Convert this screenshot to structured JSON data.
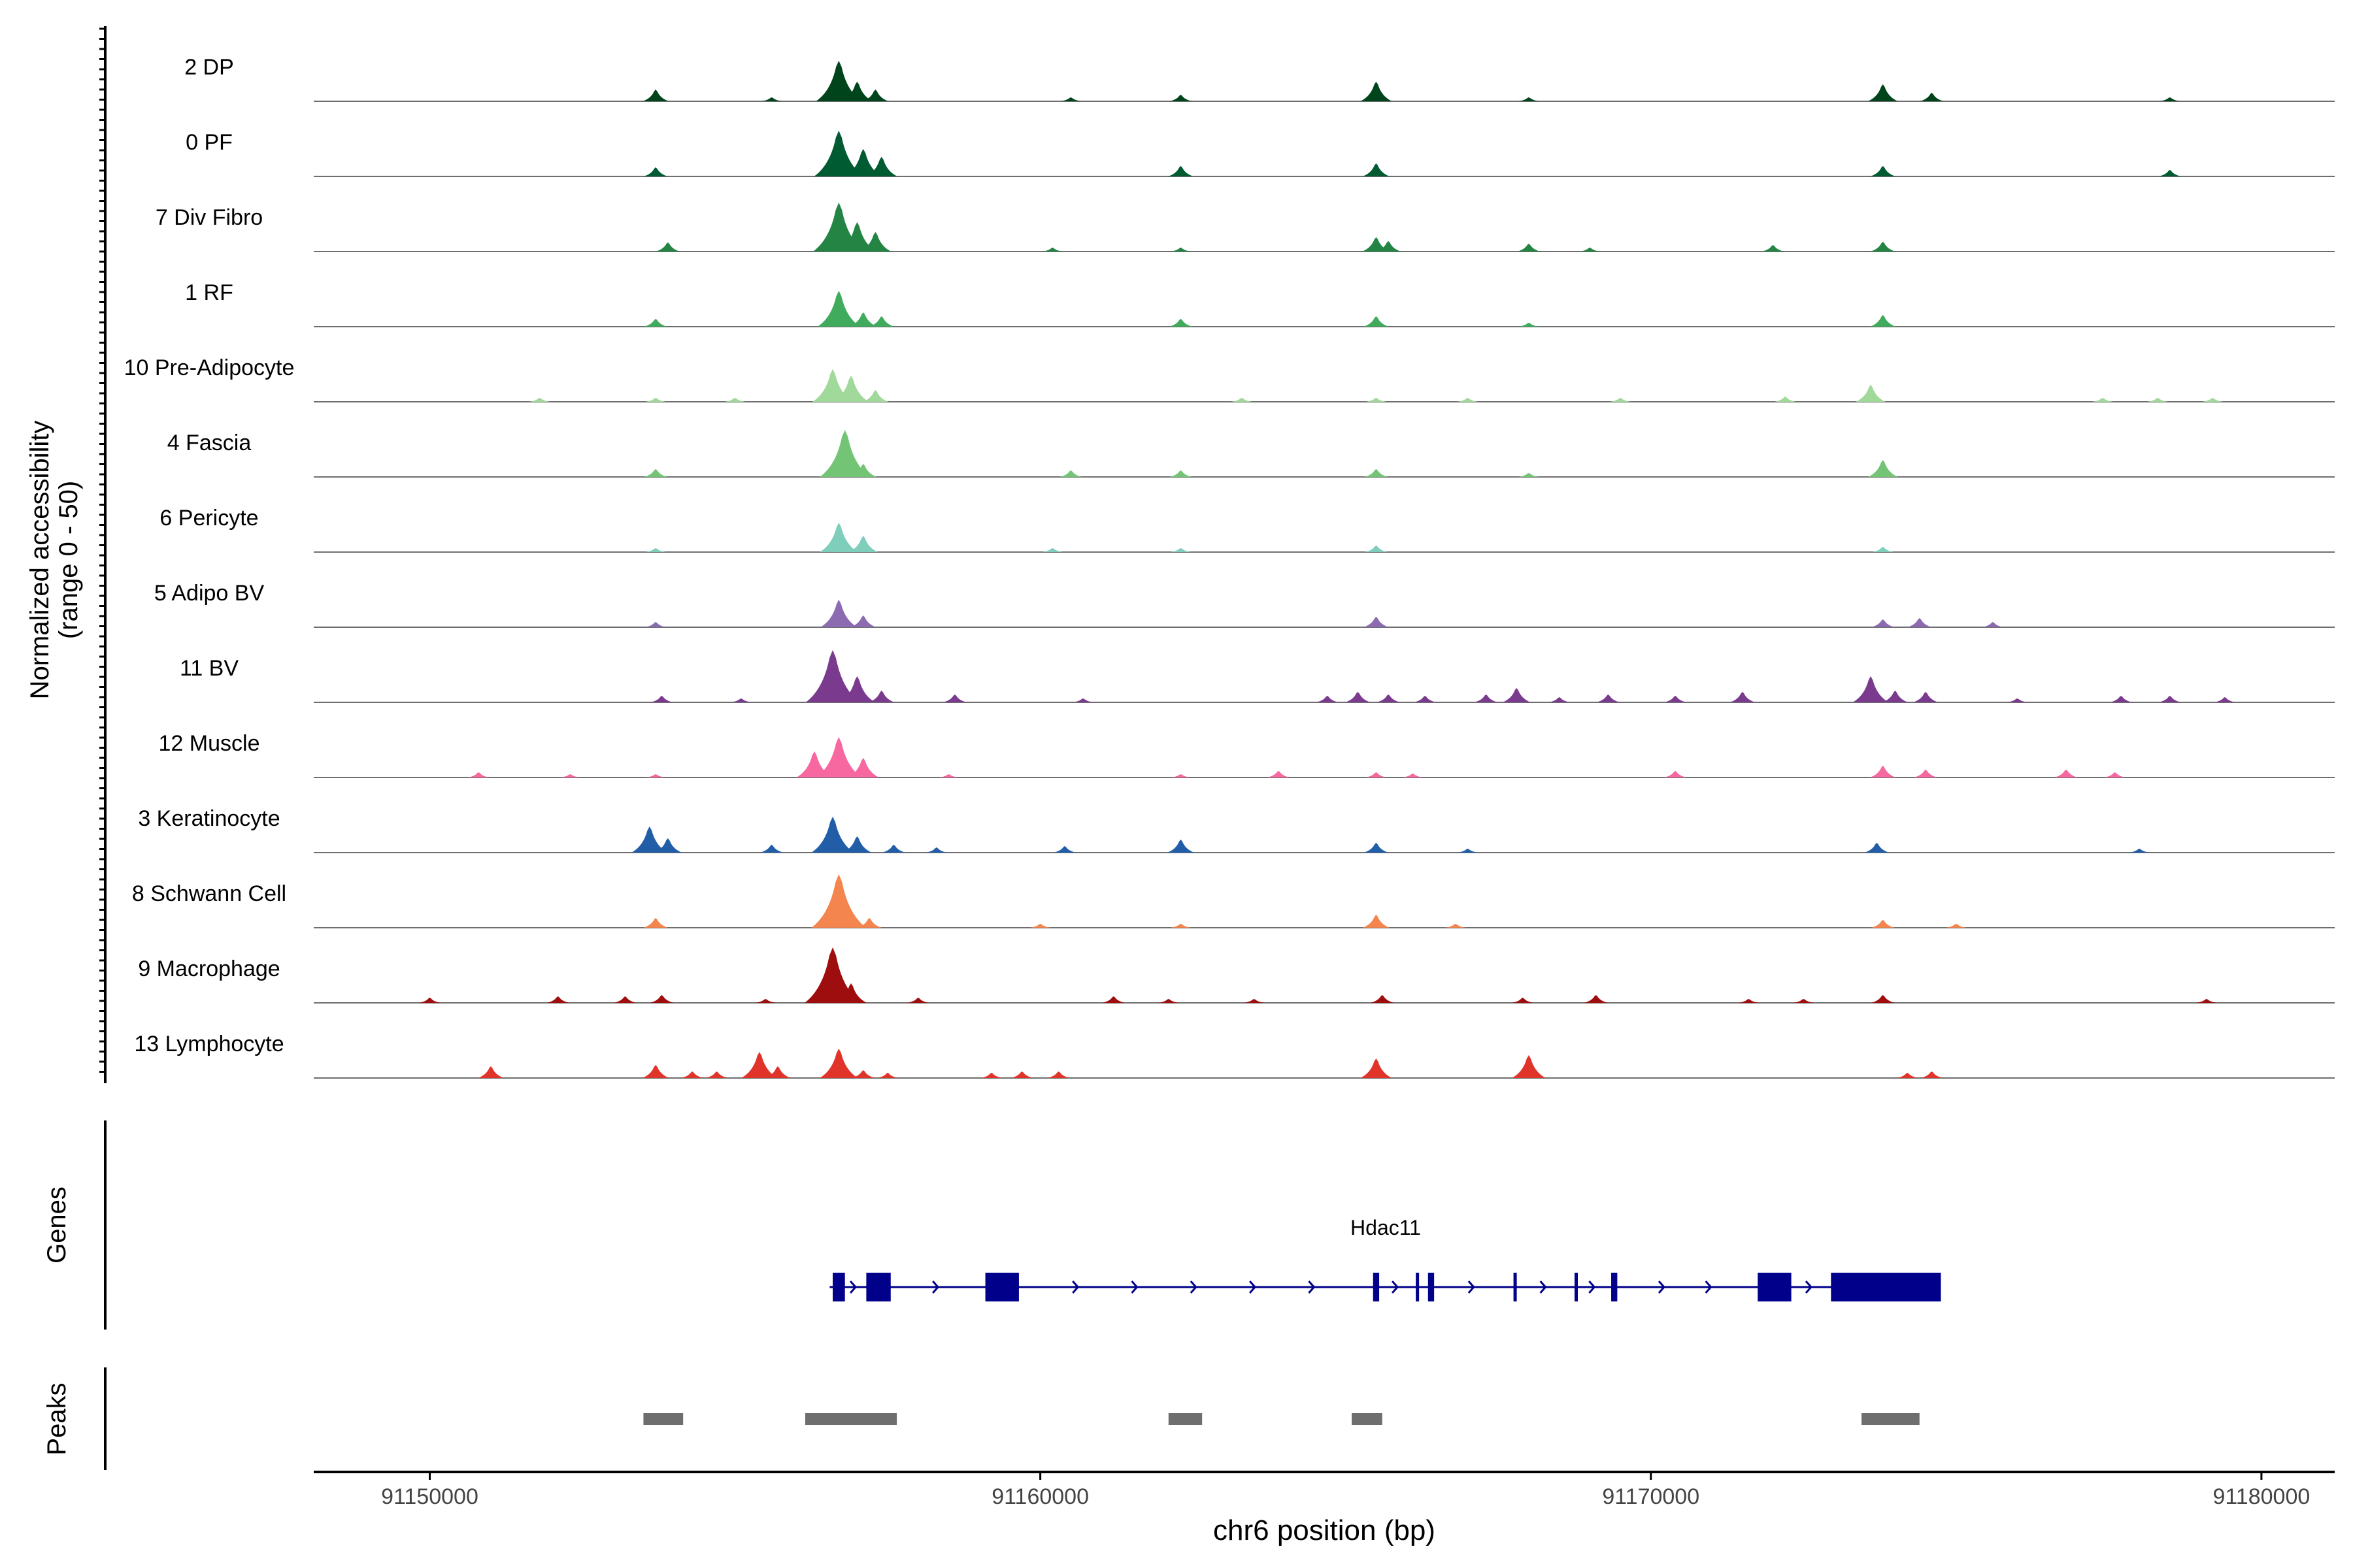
{
  "chart_data": {
    "type": "area",
    "title": "",
    "xlabel": "chr6 position (bp)",
    "ylabel": "Normalized accessibility",
    "ylabel_sub": "(range 0 - 50)",
    "xlim": [
      91148100,
      91181200
    ],
    "ylim": [
      0,
      50
    ],
    "x_ticks": [
      91150000,
      91160000,
      91170000,
      91180000
    ],
    "x_tick_labels": [
      "91150000",
      "91160000",
      "91170000",
      "91180000"
    ],
    "tracks": [
      {
        "name": "2 DP",
        "color": "#00441b",
        "peaks": [
          [
            91153700,
            0.18
          ],
          [
            91155600,
            0.06
          ],
          [
            91156700,
            0.62
          ],
          [
            91157000,
            0.3
          ],
          [
            91157300,
            0.18
          ],
          [
            91160500,
            0.06
          ],
          [
            91162300,
            0.1
          ],
          [
            91165500,
            0.3
          ],
          [
            91168000,
            0.06
          ],
          [
            91173800,
            0.26
          ],
          [
            91174600,
            0.13
          ],
          [
            91178500,
            0.06
          ]
        ]
      },
      {
        "name": "0 PF",
        "color": "#005a32",
        "peaks": [
          [
            91153700,
            0.14
          ],
          [
            91156700,
            0.7
          ],
          [
            91157100,
            0.42
          ],
          [
            91157400,
            0.3
          ],
          [
            91162300,
            0.16
          ],
          [
            91165500,
            0.2
          ],
          [
            91173800,
            0.16
          ],
          [
            91178500,
            0.1
          ]
        ]
      },
      {
        "name": "7 Div Fibro",
        "color": "#238443",
        "peaks": [
          [
            91153900,
            0.14
          ],
          [
            91156700,
            0.75
          ],
          [
            91157000,
            0.45
          ],
          [
            91157300,
            0.3
          ],
          [
            91160200,
            0.06
          ],
          [
            91162300,
            0.06
          ],
          [
            91165500,
            0.22
          ],
          [
            91165700,
            0.16
          ],
          [
            91168000,
            0.12
          ],
          [
            91169000,
            0.06
          ],
          [
            91172000,
            0.1
          ],
          [
            91173800,
            0.15
          ]
        ]
      },
      {
        "name": "1 RF",
        "color": "#41ab5d",
        "peaks": [
          [
            91153700,
            0.12
          ],
          [
            91156700,
            0.55
          ],
          [
            91157100,
            0.22
          ],
          [
            91157400,
            0.16
          ],
          [
            91162300,
            0.12
          ],
          [
            91165500,
            0.16
          ],
          [
            91168000,
            0.06
          ],
          [
            91173800,
            0.18
          ]
        ]
      },
      {
        "name": "10 Pre-Adipocyte",
        "color": "#a1d99b",
        "peaks": [
          [
            91151800,
            0.06
          ],
          [
            91153700,
            0.06
          ],
          [
            91155000,
            0.06
          ],
          [
            91156600,
            0.5
          ],
          [
            91156900,
            0.4
          ],
          [
            91157300,
            0.18
          ],
          [
            91163300,
            0.06
          ],
          [
            91165500,
            0.06
          ],
          [
            91167000,
            0.06
          ],
          [
            91169500,
            0.06
          ],
          [
            91172200,
            0.08
          ],
          [
            91173600,
            0.26
          ],
          [
            91177400,
            0.06
          ],
          [
            91178300,
            0.06
          ],
          [
            91179200,
            0.06
          ]
        ]
      },
      {
        "name": "4 Fascia",
        "color": "#74c476",
        "peaks": [
          [
            91153700,
            0.12
          ],
          [
            91156800,
            0.72
          ],
          [
            91157100,
            0.2
          ],
          [
            91160500,
            0.1
          ],
          [
            91162300,
            0.1
          ],
          [
            91165500,
            0.12
          ],
          [
            91168000,
            0.06
          ],
          [
            91173800,
            0.26
          ]
        ]
      },
      {
        "name": "6 Pericyte",
        "color": "#7fcdbb",
        "peaks": [
          [
            91153700,
            0.06
          ],
          [
            91156700,
            0.45
          ],
          [
            91157100,
            0.25
          ],
          [
            91160200,
            0.06
          ],
          [
            91162300,
            0.06
          ],
          [
            91165500,
            0.1
          ],
          [
            91173800,
            0.08
          ]
        ]
      },
      {
        "name": "5 Adipo BV",
        "color": "#8c6bb1",
        "peaks": [
          [
            91153700,
            0.08
          ],
          [
            91156700,
            0.42
          ],
          [
            91157100,
            0.18
          ],
          [
            91165500,
            0.16
          ],
          [
            91173800,
            0.12
          ],
          [
            91174400,
            0.14
          ],
          [
            91175600,
            0.08
          ]
        ]
      },
      {
        "name": "11 BV",
        "color": "#7a3b8f",
        "peaks": [
          [
            91153800,
            0.1
          ],
          [
            91155100,
            0.06
          ],
          [
            91156600,
            0.8
          ],
          [
            91157000,
            0.4
          ],
          [
            91157400,
            0.18
          ],
          [
            91158600,
            0.12
          ],
          [
            91160700,
            0.06
          ],
          [
            91164700,
            0.1
          ],
          [
            91165200,
            0.16
          ],
          [
            91165700,
            0.12
          ],
          [
            91166300,
            0.1
          ],
          [
            91167300,
            0.12
          ],
          [
            91167800,
            0.22
          ],
          [
            91168500,
            0.08
          ],
          [
            91169300,
            0.12
          ],
          [
            91170400,
            0.1
          ],
          [
            91171500,
            0.16
          ],
          [
            91173600,
            0.4
          ],
          [
            91174000,
            0.18
          ],
          [
            91174500,
            0.16
          ],
          [
            91176000,
            0.06
          ],
          [
            91177700,
            0.1
          ],
          [
            91178500,
            0.1
          ],
          [
            91179400,
            0.08
          ]
        ]
      },
      {
        "name": "12 Muscle",
        "color": "#f768a1",
        "peaks": [
          [
            91150800,
            0.08
          ],
          [
            91152300,
            0.05
          ],
          [
            91153700,
            0.05
          ],
          [
            91156300,
            0.4
          ],
          [
            91156700,
            0.62
          ],
          [
            91157100,
            0.3
          ],
          [
            91158500,
            0.05
          ],
          [
            91162300,
            0.05
          ],
          [
            91163900,
            0.1
          ],
          [
            91165500,
            0.08
          ],
          [
            91166100,
            0.06
          ],
          [
            91170400,
            0.1
          ],
          [
            91173800,
            0.18
          ],
          [
            91174500,
            0.12
          ],
          [
            91176800,
            0.12
          ],
          [
            91177600,
            0.08
          ]
        ]
      },
      {
        "name": "3 Keratinocyte",
        "color": "#225ea8",
        "peaks": [
          [
            91153600,
            0.4
          ],
          [
            91153900,
            0.22
          ],
          [
            91155600,
            0.12
          ],
          [
            91156600,
            0.55
          ],
          [
            91157000,
            0.25
          ],
          [
            91157600,
            0.12
          ],
          [
            91158300,
            0.08
          ],
          [
            91160400,
            0.1
          ],
          [
            91162300,
            0.2
          ],
          [
            91165500,
            0.15
          ],
          [
            91167000,
            0.06
          ],
          [
            91173700,
            0.15
          ],
          [
            91178000,
            0.06
          ]
        ]
      },
      {
        "name": "8 Schwann Cell",
        "color": "#f4854f",
        "peaks": [
          [
            91153700,
            0.15
          ],
          [
            91156700,
            0.82
          ],
          [
            91157200,
            0.15
          ],
          [
            91160000,
            0.06
          ],
          [
            91162300,
            0.06
          ],
          [
            91165500,
            0.2
          ],
          [
            91166800,
            0.06
          ],
          [
            91173800,
            0.12
          ],
          [
            91175000,
            0.06
          ]
        ]
      },
      {
        "name": "9 Macrophage",
        "color": "#9e0e0e",
        "peaks": [
          [
            91150000,
            0.08
          ],
          [
            91152100,
            0.1
          ],
          [
            91153200,
            0.1
          ],
          [
            91153800,
            0.12
          ],
          [
            91155500,
            0.06
          ],
          [
            91156600,
            0.85
          ],
          [
            91156900,
            0.3
          ],
          [
            91158000,
            0.08
          ],
          [
            91161200,
            0.1
          ],
          [
            91162100,
            0.06
          ],
          [
            91163500,
            0.06
          ],
          [
            91165600,
            0.12
          ],
          [
            91167900,
            0.08
          ],
          [
            91169100,
            0.12
          ],
          [
            91171600,
            0.06
          ],
          [
            91172500,
            0.06
          ],
          [
            91173800,
            0.12
          ],
          [
            91179100,
            0.06
          ]
        ]
      },
      {
        "name": "13 Lymphocyte",
        "color": "#e0342a",
        "peaks": [
          [
            91151000,
            0.18
          ],
          [
            91153700,
            0.2
          ],
          [
            91154300,
            0.1
          ],
          [
            91154700,
            0.1
          ],
          [
            91155400,
            0.4
          ],
          [
            91155700,
            0.18
          ],
          [
            91156700,
            0.45
          ],
          [
            91157100,
            0.12
          ],
          [
            91157500,
            0.08
          ],
          [
            91159200,
            0.08
          ],
          [
            91159700,
            0.1
          ],
          [
            91160300,
            0.1
          ],
          [
            91165500,
            0.3
          ],
          [
            91168000,
            0.35
          ],
          [
            91174200,
            0.08
          ],
          [
            91174600,
            0.1
          ]
        ]
      }
    ],
    "genes": {
      "label": "Genes",
      "gene_name": "Hdac11",
      "color": "#00008b",
      "start": 91156550,
      "end": 91174750,
      "strand": "+",
      "exons": [
        [
          91156600,
          91156800
        ],
        [
          91157150,
          91157550
        ],
        [
          91159100,
          91159650
        ],
        [
          91165450,
          91165550
        ],
        [
          91166150,
          91166200
        ],
        [
          91166350,
          91166450
        ],
        [
          91167750,
          91167800
        ],
        [
          91168750,
          91168800
        ],
        [
          91169350,
          91169450
        ],
        [
          91171750,
          91172300
        ],
        [
          91172950,
          91174750
        ]
      ]
    },
    "peaks_track": {
      "label": "Peaks",
      "color": "#6e6e6e",
      "regions": [
        [
          91153500,
          91154150
        ],
        [
          91156150,
          91157650
        ],
        [
          91162100,
          91162650
        ],
        [
          91165100,
          91165600
        ],
        [
          91173450,
          91174400
        ]
      ]
    }
  }
}
